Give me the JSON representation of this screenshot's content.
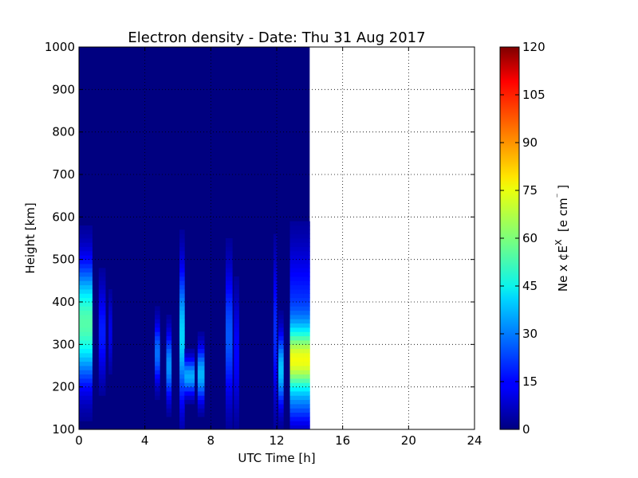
{
  "chart_data": {
    "type": "heatmap",
    "title": "Electron density - Date: Thu 31 Aug 2017",
    "xlabel": "UTC Time [h]",
    "ylabel": "Height [km]",
    "xlim": [
      0,
      24
    ],
    "ylim": [
      100,
      1000
    ],
    "x_ticks": [
      "0",
      "4",
      "8",
      "12",
      "16",
      "20",
      "24"
    ],
    "y_ticks": [
      "100",
      "200",
      "300",
      "400",
      "500",
      "600",
      "700",
      "800",
      "900",
      "1000"
    ],
    "grid": true,
    "colormap": "jet",
    "colorbar": {
      "label": "Ne x ¢E^X  [e cm⁻ ]",
      "label_parts": [
        "Ne x ¢E",
        "X",
        "  [e cm",
        "⁻",
        " ]"
      ],
      "range": [
        0,
        120
      ],
      "ticks": [
        "0",
        "15",
        "30",
        "45",
        "60",
        "75",
        "90",
        "105",
        "120"
      ]
    },
    "data_extent_hours": [
      0,
      14
    ],
    "background_value": 0,
    "features": [
      {
        "t_start": 0.0,
        "t_end": 0.8,
        "h_center": 350,
        "h_sigma": 95,
        "peak": 55
      },
      {
        "t_start": 1.2,
        "t_end": 1.6,
        "h_center": 330,
        "h_sigma": 80,
        "peak": 18
      },
      {
        "t_start": 1.8,
        "t_end": 2.0,
        "h_center": 330,
        "h_sigma": 60,
        "peak": 12
      },
      {
        "t_start": 4.6,
        "t_end": 4.9,
        "h_center": 280,
        "h_sigma": 50,
        "peak": 28
      },
      {
        "t_start": 5.3,
        "t_end": 5.6,
        "h_center": 250,
        "h_sigma": 55,
        "peak": 32
      },
      {
        "t_start": 6.1,
        "t_end": 6.4,
        "h_center": 320,
        "h_sigma": 110,
        "peak": 40
      },
      {
        "t_start": 6.4,
        "t_end": 7.0,
        "h_center": 225,
        "h_sigma": 30,
        "peak": 35
      },
      {
        "t_start": 7.2,
        "t_end": 7.6,
        "h_center": 230,
        "h_sigma": 45,
        "peak": 36
      },
      {
        "t_start": 8.9,
        "t_end": 9.3,
        "h_center": 320,
        "h_sigma": 110,
        "peak": 25
      },
      {
        "t_start": 9.4,
        "t_end": 9.7,
        "h_center": 280,
        "h_sigma": 100,
        "peak": 15
      },
      {
        "t_start": 11.8,
        "t_end": 12.0,
        "h_center": 330,
        "h_sigma": 120,
        "peak": 20
      },
      {
        "t_start": 12.1,
        "t_end": 12.4,
        "h_center": 240,
        "h_sigma": 60,
        "peak": 38
      },
      {
        "t_start": 12.8,
        "t_end": 14.0,
        "h_center": 260,
        "h_sigma": 55,
        "peak": 62
      },
      {
        "t_start": 12.8,
        "t_end": 14.0,
        "h_center": 380,
        "h_sigma": 110,
        "peak": 20
      },
      {
        "t_start": 12.8,
        "t_end": 14.0,
        "h_center": 150,
        "h_sigma": 40,
        "peak": 15
      }
    ]
  }
}
